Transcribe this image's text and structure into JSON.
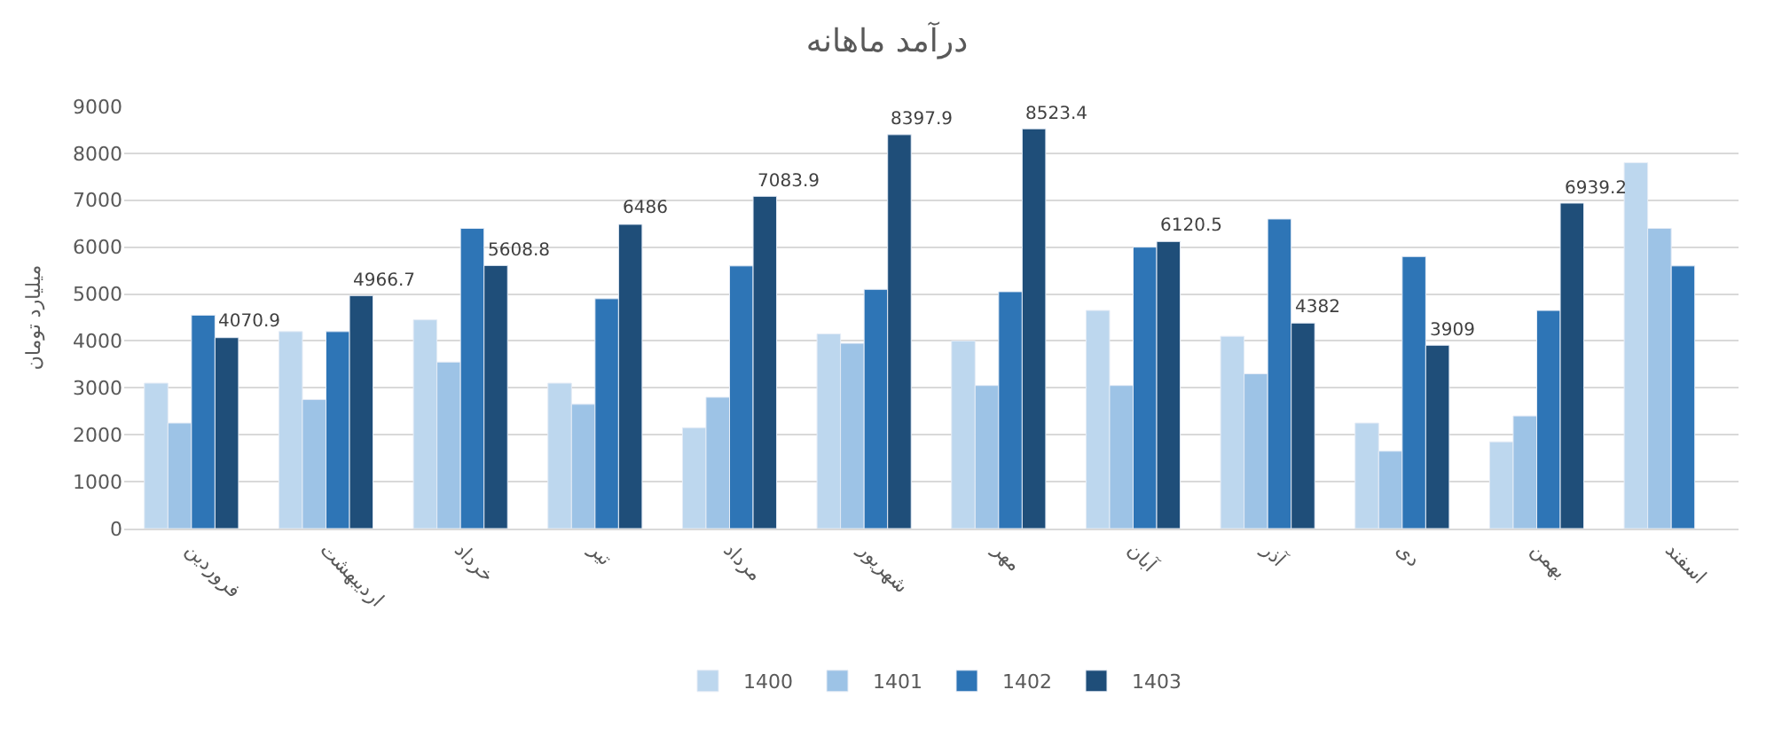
{
  "chart_data": {
    "type": "bar",
    "title": "درآمد ماهانه",
    "ylabel": "میلیارد تومان",
    "categories": [
      "فروردین",
      "اردیبهشت",
      "خرداد",
      "تیر",
      "مرداد",
      "شهریور",
      "مهر",
      "آبان",
      "آذر",
      "دی",
      "بهمن",
      "اسفند"
    ],
    "series": [
      {
        "name": "1400",
        "color": "#bdd7ee",
        "values": [
          3100,
          4200,
          4450,
          3100,
          2150,
          4150,
          4000,
          4650,
          4100,
          2250,
          1850,
          7800
        ]
      },
      {
        "name": "1401",
        "color": "#9dc3e6",
        "values": [
          2250,
          2750,
          3550,
          2650,
          2800,
          3950,
          3050,
          3050,
          3300,
          1650,
          2400,
          6400
        ]
      },
      {
        "name": "1402",
        "color": "#2e75b6",
        "values": [
          4550,
          4200,
          6400,
          4900,
          5600,
          5100,
          5050,
          6000,
          6600,
          5800,
          4650,
          5600
        ]
      },
      {
        "name": "1403",
        "color": "#1f4e79",
        "values": [
          4070.9,
          4966.7,
          5608.8,
          6486,
          7083.9,
          8397.9,
          8523.4,
          6120.5,
          4382,
          3909,
          6939.2,
          null
        ],
        "value_labels": [
          "4070.9",
          "4966.7",
          "5608.8",
          "6486",
          "7083.9",
          "8397.9",
          "8523.4",
          "6120.5",
          "4382",
          "3909",
          "6939.2",
          null
        ]
      }
    ],
    "ylim": [
      0,
      9000
    ],
    "yticks": [
      0,
      1000,
      2000,
      3000,
      4000,
      5000,
      6000,
      7000,
      8000,
      9000
    ],
    "grid": "y",
    "legend": "bottom"
  }
}
